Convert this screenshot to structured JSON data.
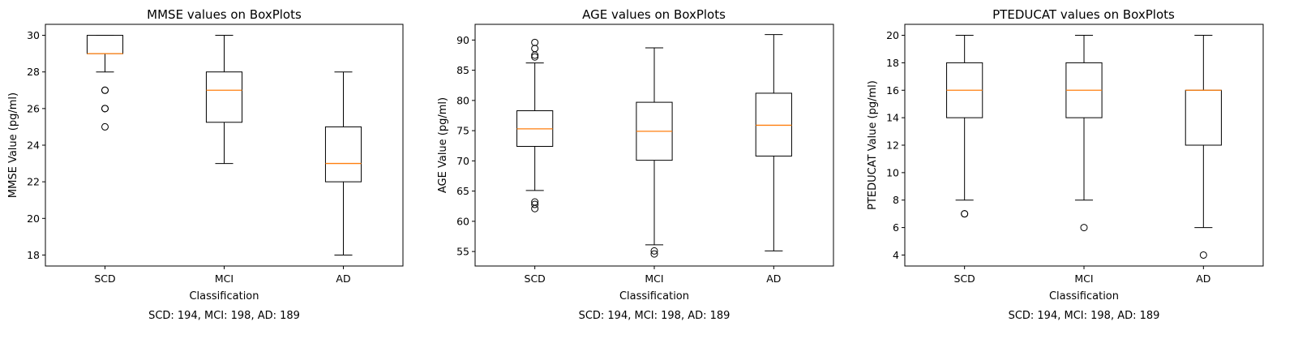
{
  "chart_data": [
    {
      "type": "box",
      "title": "MMSE values on BoxPlots",
      "xlabel": "Classification",
      "ylabel": "MMSE Value (pg/ml)",
      "categories": [
        "SCD",
        "MCI",
        "AD"
      ],
      "ylim": [
        17.4,
        30.6
      ],
      "yticks": [
        18,
        20,
        22,
        24,
        26,
        28,
        30
      ],
      "boxes": [
        {
          "q1": 29,
          "median": 29,
          "q3": 30,
          "whislo": 28,
          "whishi": 30,
          "fliers": [
            27,
            27,
            26,
            26,
            25
          ]
        },
        {
          "q1": 25.25,
          "median": 27,
          "q3": 28,
          "whislo": 23,
          "whishi": 30,
          "fliers": []
        },
        {
          "q1": 22,
          "median": 23,
          "q3": 25,
          "whislo": 18,
          "whishi": 28,
          "fliers": []
        }
      ],
      "footnote": "SCD: 194, MCI: 198, AD: 189"
    },
    {
      "type": "box",
      "title": "AGE values on BoxPlots",
      "xlabel": "Classification",
      "ylabel": "AGE Value (pg/ml)",
      "categories": [
        "SCD",
        "MCI",
        "AD"
      ],
      "ylim": [
        52.6,
        92.6
      ],
      "yticks": [
        55,
        60,
        65,
        70,
        75,
        80,
        85,
        90
      ],
      "boxes": [
        {
          "q1": 72.4,
          "median": 75.3,
          "q3": 78.3,
          "whislo": 65.1,
          "whishi": 86.2,
          "fliers": [
            89.6,
            88.6,
            87.5,
            87.2,
            63.2,
            62.8,
            62.1
          ]
        },
        {
          "q1": 70.1,
          "median": 74.9,
          "q3": 79.7,
          "whislo": 56.1,
          "whishi": 88.7,
          "fliers": [
            55.1,
            54.6
          ]
        },
        {
          "q1": 70.8,
          "median": 75.9,
          "q3": 81.2,
          "whislo": 55.1,
          "whishi": 90.9,
          "fliers": []
        }
      ],
      "footnote": "SCD: 194, MCI: 198, AD: 189"
    },
    {
      "type": "box",
      "title": "PTEDUCAT values on BoxPlots",
      "xlabel": "Classification",
      "ylabel": "PTEDUCAT Value (pg/ml)",
      "categories": [
        "SCD",
        "MCI",
        "AD"
      ],
      "ylim": [
        3.2,
        20.8
      ],
      "yticks": [
        4,
        6,
        8,
        10,
        12,
        14,
        16,
        18,
        20
      ],
      "boxes": [
        {
          "q1": 14,
          "median": 16,
          "q3": 18,
          "whislo": 8,
          "whishi": 20,
          "fliers": [
            7,
            7
          ]
        },
        {
          "q1": 14,
          "median": 16,
          "q3": 18,
          "whislo": 8,
          "whishi": 20,
          "fliers": [
            6
          ]
        },
        {
          "q1": 12,
          "median": 16,
          "q3": 16,
          "whislo": 6,
          "whishi": 20,
          "fliers": [
            4
          ]
        }
      ],
      "footnote": "SCD: 194, MCI: 198, AD: 189"
    }
  ],
  "colors": {
    "median": "#ff7f0e",
    "box": "#000000",
    "background": "#ffffff"
  }
}
